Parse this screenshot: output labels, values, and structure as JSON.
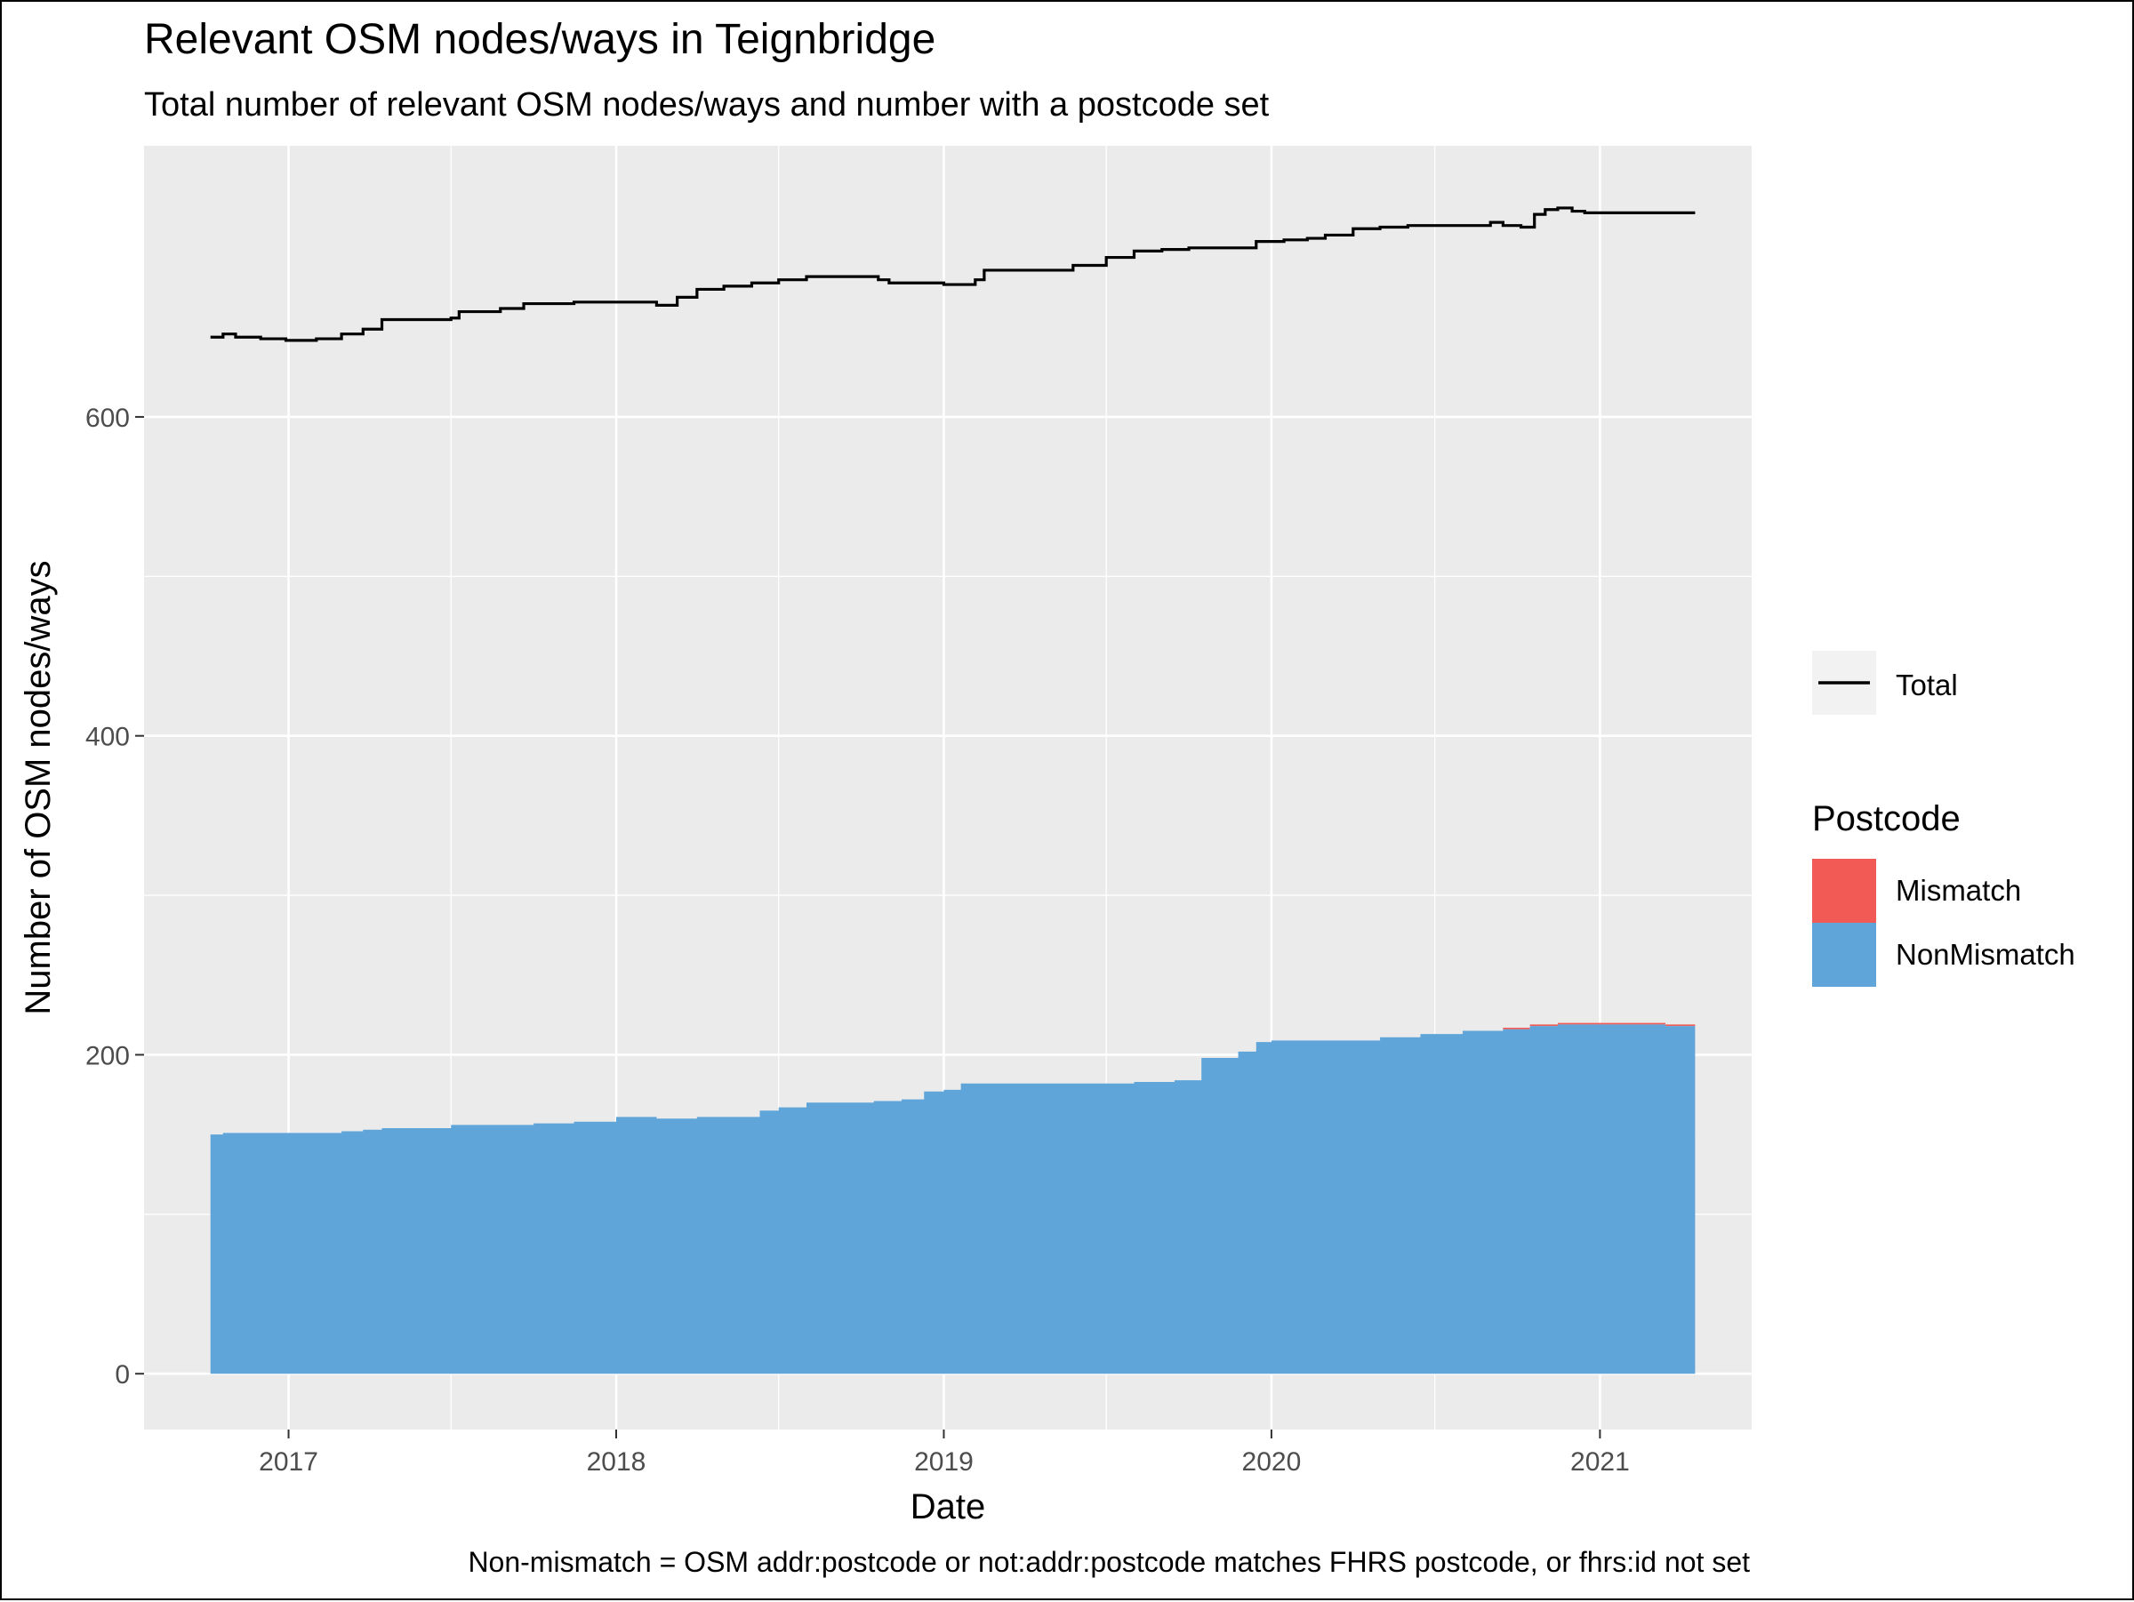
{
  "chart_data": {
    "type": "area",
    "title": "Relevant OSM nodes/ways in Teignbridge",
    "subtitle": "Total number of relevant OSM nodes/ways and number with a postcode set",
    "xlabel": "Date",
    "ylabel": "Number of OSM nodes/ways",
    "caption": "Non-mismatch = OSM addr:postcode or not:addr:postcode matches FHRS postcode, or fhrs:id not set",
    "x_ticks": [
      "2017",
      "2018",
      "2019",
      "2020",
      "2021"
    ],
    "y_ticks": [
      "0",
      "200",
      "400",
      "600"
    ],
    "xlim": [
      "2016-07-24",
      "2021-06-19"
    ],
    "ylim": [
      -35,
      770
    ],
    "grid": true,
    "legend_position": "right",
    "legend_line": {
      "label": "Total",
      "color": "#000000"
    },
    "legend_fill": {
      "title": "Postcode",
      "items": [
        {
          "label": "Mismatch",
          "color": "#F15A55"
        },
        {
          "label": "NonMismatch",
          "color": "#5FA5DA"
        }
      ]
    },
    "series": [
      {
        "name": "Total",
        "kind": "line",
        "color": "#000000",
        "points": [
          [
            "2016-10-06",
            650
          ],
          [
            "2016-10-20",
            652
          ],
          [
            "2016-11-03",
            650
          ],
          [
            "2016-12-01",
            649
          ],
          [
            "2016-12-29",
            648
          ],
          [
            "2017-02-01",
            649
          ],
          [
            "2017-03-01",
            652
          ],
          [
            "2017-03-25",
            655
          ],
          [
            "2017-04-15",
            661
          ],
          [
            "2017-07-01",
            662
          ],
          [
            "2017-07-10",
            666
          ],
          [
            "2017-08-25",
            668
          ],
          [
            "2017-09-20",
            671
          ],
          [
            "2017-11-15",
            672
          ],
          [
            "2018-01-15",
            672
          ],
          [
            "2018-02-15",
            670
          ],
          [
            "2018-03-10",
            675
          ],
          [
            "2018-04-01",
            680
          ],
          [
            "2018-05-01",
            682
          ],
          [
            "2018-06-01",
            684
          ],
          [
            "2018-07-01",
            686
          ],
          [
            "2018-08-01",
            688
          ],
          [
            "2018-09-15",
            688
          ],
          [
            "2018-10-20",
            686
          ],
          [
            "2018-11-01",
            684
          ],
          [
            "2019-01-01",
            683
          ],
          [
            "2019-02-05",
            686
          ],
          [
            "2019-02-15",
            692
          ],
          [
            "2019-04-01",
            692
          ],
          [
            "2019-05-25",
            695
          ],
          [
            "2019-07-01",
            700
          ],
          [
            "2019-08-01",
            704
          ],
          [
            "2019-09-01",
            705
          ],
          [
            "2019-10-01",
            706
          ],
          [
            "2019-11-15",
            706
          ],
          [
            "2019-12-15",
            710
          ],
          [
            "2020-01-15",
            711
          ],
          [
            "2020-02-10",
            712
          ],
          [
            "2020-03-01",
            714
          ],
          [
            "2020-04-01",
            718
          ],
          [
            "2020-05-01",
            719
          ],
          [
            "2020-06-01",
            720
          ],
          [
            "2020-07-01",
            720
          ],
          [
            "2020-08-01",
            720
          ],
          [
            "2020-09-01",
            722
          ],
          [
            "2020-09-15",
            720
          ],
          [
            "2020-10-05",
            719
          ],
          [
            "2020-10-20",
            727
          ],
          [
            "2020-11-01",
            730
          ],
          [
            "2020-11-15",
            731
          ],
          [
            "2020-12-01",
            729
          ],
          [
            "2020-12-15",
            728
          ],
          [
            "2021-02-01",
            728
          ],
          [
            "2021-04-17",
            728
          ]
        ]
      },
      {
        "name": "NonMismatch",
        "kind": "area",
        "color": "#5FA5DA",
        "points": [
          [
            "2016-10-06",
            150
          ],
          [
            "2016-10-20",
            151
          ],
          [
            "2017-03-01",
            152
          ],
          [
            "2017-03-25",
            153
          ],
          [
            "2017-04-15",
            154
          ],
          [
            "2017-07-01",
            156
          ],
          [
            "2017-10-01",
            157
          ],
          [
            "2017-11-15",
            158
          ],
          [
            "2018-01-01",
            161
          ],
          [
            "2018-02-15",
            160
          ],
          [
            "2018-04-01",
            161
          ],
          [
            "2018-05-15",
            161
          ],
          [
            "2018-06-10",
            165
          ],
          [
            "2018-07-01",
            167
          ],
          [
            "2018-08-01",
            170
          ],
          [
            "2018-10-15",
            171
          ],
          [
            "2018-11-15",
            172
          ],
          [
            "2018-12-10",
            177
          ],
          [
            "2019-01-01",
            178
          ],
          [
            "2019-01-20",
            182
          ],
          [
            "2019-03-01",
            182
          ],
          [
            "2019-06-01",
            182
          ],
          [
            "2019-08-01",
            183
          ],
          [
            "2019-09-15",
            184
          ],
          [
            "2019-10-15",
            198
          ],
          [
            "2019-11-25",
            202
          ],
          [
            "2019-12-15",
            208
          ],
          [
            "2020-01-01",
            209
          ],
          [
            "2020-03-15",
            209
          ],
          [
            "2020-05-01",
            211
          ],
          [
            "2020-06-15",
            213
          ],
          [
            "2020-08-01",
            215
          ],
          [
            "2020-09-15",
            216
          ],
          [
            "2020-10-15",
            218
          ],
          [
            "2020-11-15",
            219
          ],
          [
            "2020-12-15",
            219
          ],
          [
            "2021-02-01",
            219
          ],
          [
            "2021-03-15",
            218
          ],
          [
            "2021-04-17",
            218
          ]
        ]
      },
      {
        "name": "Mismatch",
        "kind": "area",
        "color": "#F15A55",
        "points": [
          [
            "2016-10-06",
            0
          ],
          [
            "2020-08-01",
            0
          ],
          [
            "2020-08-15",
            1
          ],
          [
            "2020-09-15",
            1
          ],
          [
            "2020-10-15",
            1
          ],
          [
            "2020-11-15",
            1
          ],
          [
            "2020-12-15",
            1
          ],
          [
            "2021-02-01",
            1
          ],
          [
            "2021-03-15",
            1
          ],
          [
            "2021-04-17",
            1
          ]
        ]
      }
    ]
  }
}
